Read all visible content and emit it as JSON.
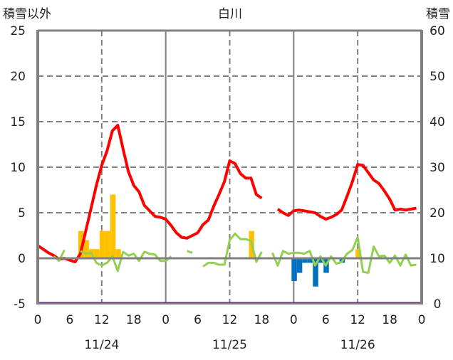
{
  "chart_data": {
    "type": "bar+line",
    "title": "白川",
    "ylabel_left": "積雪以外",
    "ylabel_right": "積雪",
    "ylim_left": [
      -5,
      25
    ],
    "ylim_right": [
      0,
      60
    ],
    "left_ticks": [
      "25",
      "20",
      "15",
      "10",
      "5",
      "0",
      "-5"
    ],
    "right_ticks": [
      "60",
      "50",
      "40",
      "30",
      "20",
      "10",
      "0"
    ],
    "x_tick_labels": [
      "0",
      "6",
      "12",
      "18",
      "0",
      "6",
      "12",
      "18",
      "0",
      "6",
      "12",
      "18",
      "0"
    ],
    "date_labels": [
      "11/24",
      "11/25",
      "11/26"
    ],
    "hours": 72,
    "colors": {
      "temperature": "#ff0000",
      "other": "#92d050",
      "precip": "#ffc000",
      "negative": "#0070c0",
      "snow": "#7030a0",
      "grid": "#808080"
    },
    "series": [
      {
        "name": "temperature",
        "axis": "left",
        "type": "line",
        "values": [
          1.4,
          1.0,
          0.6,
          0.3,
          -0.1,
          0.0,
          -0.2,
          -0.4,
          0.5,
          3.0,
          5.5,
          8.0,
          10.2,
          11.8,
          14.0,
          14.6,
          12.0,
          9.5,
          8.0,
          7.3,
          5.8,
          5.2,
          4.6,
          4.5,
          4.3,
          3.6,
          2.8,
          2.3,
          2.2,
          2.5,
          2.8,
          3.7,
          4.2,
          5.7,
          7.0,
          8.4,
          10.7,
          10.4,
          9.3,
          8.8,
          8.8,
          7.0,
          6.6,
          null,
          null,
          5.4,
          5.0,
          4.7,
          5.2,
          5.3,
          5.2,
          5.1,
          5.0,
          4.6,
          4.3,
          4.5,
          4.8,
          5.3,
          6.8,
          8.4,
          10.3,
          10.2,
          9.4,
          8.6,
          8.2,
          7.4,
          6.5,
          5.3,
          5.4,
          5.3,
          5.4,
          5.5
        ]
      },
      {
        "name": "other",
        "axis": "left",
        "type": "line",
        "values": [
          null,
          null,
          null,
          0.2,
          -0.3,
          0.9,
          null,
          null,
          0.8,
          0.5,
          0.6,
          -0.5,
          -0.8,
          -0.5,
          0.2,
          -1.4,
          0.7,
          0.3,
          0.5,
          -0.3,
          0.7,
          0.5,
          0.4,
          -0.3,
          -0.3,
          0.2,
          null,
          null,
          0.8,
          0.6,
          null,
          -0.9,
          -0.5,
          -0.5,
          -0.7,
          -0.7,
          2.0,
          2.7,
          2.1,
          2.1,
          1.9,
          -0.4,
          0.7,
          null,
          0.6,
          -0.8,
          0.8,
          0.5,
          0.6,
          0.6,
          0.5,
          0.8,
          -0.8,
          0.2,
          -0.8,
          0.2,
          -0.6,
          -0.4,
          0.5,
          0.9,
          2.3,
          -1.5,
          -1.6,
          1.3,
          0.2,
          0.3,
          -0.5,
          0.3,
          -0.8,
          0.4,
          -0.8,
          -0.7
        ]
      },
      {
        "name": "precip",
        "axis": "left",
        "type": "bar",
        "bars": [
          [
            8,
            3
          ],
          [
            9,
            2
          ],
          [
            10,
            1
          ],
          [
            11,
            1
          ],
          [
            12,
            3
          ],
          [
            13,
            3
          ],
          [
            14,
            7
          ],
          [
            15,
            1
          ],
          [
            40,
            3
          ],
          [
            60,
            1
          ]
        ]
      },
      {
        "name": "negative",
        "axis": "left",
        "type": "bar",
        "bars": [
          [
            48,
            -2.5
          ],
          [
            49,
            -1.6
          ],
          [
            50,
            -0.5
          ],
          [
            51,
            -0.5
          ],
          [
            52,
            -3.1
          ],
          [
            53,
            -0.5
          ],
          [
            54,
            -1.6
          ],
          [
            57,
            -0.5
          ]
        ]
      },
      {
        "name": "snow",
        "axis": "right",
        "type": "line",
        "values": [
          0,
          0
        ]
      }
    ]
  }
}
